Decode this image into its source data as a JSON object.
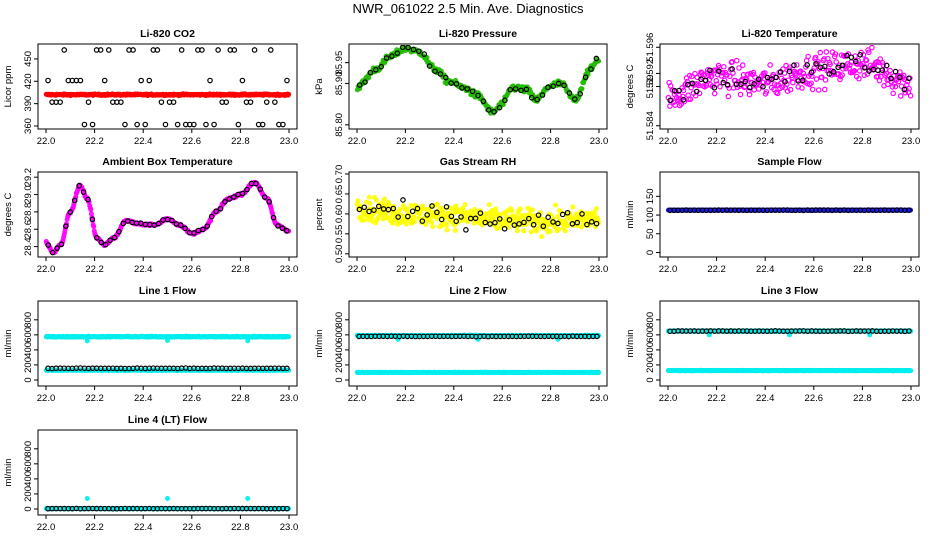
{
  "title": "NWR_061022  2.5 Min. Ave. Diagnostics",
  "colors": {
    "black": "#000000",
    "red": "#ff0000",
    "green": "#22bb00",
    "magenta": "#ff00ff",
    "yellow": "#ffff00",
    "blue": "#1a1aff",
    "cyan": "#00eeee"
  },
  "chart_data": [
    {
      "id": "co2",
      "type": "scatter",
      "title": "Li-820 CO2",
      "ylabel": "Licor ppm",
      "xlim": [
        22.0,
        23.0
      ],
      "xticks": [
        "22.0",
        "22.2",
        "22.4",
        "22.6",
        "22.8",
        "23.0"
      ],
      "ylim": [
        356,
        470
      ],
      "yticks": [
        "360",
        "390",
        "420",
        "450"
      ],
      "series": [
        {
          "color": "red",
          "pattern": "flat",
          "count": 400,
          "base": 402,
          "noise": 1,
          "marker": "filled"
        },
        {
          "color": "black",
          "pattern": "levels",
          "levels": [
            362,
            392,
            421,
            462
          ],
          "count": 60,
          "marker": "open"
        }
      ]
    },
    {
      "id": "pressure",
      "type": "scatter",
      "title": "Li-820 Pressure",
      "ylabel": "kPa",
      "xlim": [
        22.0,
        23.0
      ],
      "xticks": [
        "22.0",
        "22.2",
        "22.4",
        "22.6",
        "22.8",
        "23.0"
      ],
      "ylim": [
        85.79,
        85.995
      ],
      "yticks": [
        "85.80",
        "85.90",
        "85.95"
      ],
      "series": [
        {
          "color": "green",
          "pattern": "curve",
          "count": 320,
          "noise": 0.008,
          "knots": [
            [
              22.0,
              85.89
            ],
            [
              22.08,
              85.935
            ],
            [
              22.14,
              85.965
            ],
            [
              22.2,
              85.985
            ],
            [
              22.26,
              85.975
            ],
            [
              22.32,
              85.935
            ],
            [
              22.38,
              85.905
            ],
            [
              22.44,
              85.89
            ],
            [
              22.5,
              85.87
            ],
            [
              22.56,
              85.83
            ],
            [
              22.6,
              85.85
            ],
            [
              22.64,
              85.89
            ],
            [
              22.7,
              85.885
            ],
            [
              22.74,
              85.86
            ],
            [
              22.8,
              85.895
            ],
            [
              22.84,
              85.9
            ],
            [
              22.9,
              85.86
            ],
            [
              22.96,
              85.93
            ],
            [
              23.0,
              85.96
            ]
          ],
          "marker": "filled"
        },
        {
          "color": "black",
          "pattern": "curve",
          "count": 45,
          "noise": 0.006,
          "knots": [
            [
              22.0,
              85.89
            ],
            [
              22.08,
              85.935
            ],
            [
              22.14,
              85.965
            ],
            [
              22.2,
              85.985
            ],
            [
              22.26,
              85.975
            ],
            [
              22.32,
              85.935
            ],
            [
              22.38,
              85.905
            ],
            [
              22.44,
              85.89
            ],
            [
              22.5,
              85.87
            ],
            [
              22.56,
              85.83
            ],
            [
              22.6,
              85.85
            ],
            [
              22.64,
              85.89
            ],
            [
              22.7,
              85.885
            ],
            [
              22.74,
              85.86
            ],
            [
              22.8,
              85.895
            ],
            [
              22.84,
              85.9
            ],
            [
              22.9,
              85.86
            ],
            [
              22.96,
              85.93
            ],
            [
              23.0,
              85.96
            ]
          ],
          "marker": "open"
        }
      ]
    },
    {
      "id": "licor-temp",
      "type": "scatter",
      "title": "Li-820 Temperature",
      "ylabel": "degrees C",
      "xlim": [
        22.0,
        23.0
      ],
      "xticks": [
        "22.0",
        "22.2",
        "22.4",
        "22.6",
        "22.8",
        "23.0"
      ],
      "ylim": [
        51.5835,
        51.5965
      ],
      "yticks": [
        "51.584",
        "51.59",
        "51.592",
        "51.596"
      ],
      "series": [
        {
          "color": "magenta",
          "pattern": "curve",
          "count": 320,
          "noise": 0.0025,
          "knots": [
            [
              22.0,
              51.5885
            ],
            [
              22.2,
              51.5915
            ],
            [
              22.4,
              51.5905
            ],
            [
              22.6,
              51.5925
            ],
            [
              22.8,
              51.5935
            ],
            [
              23.0,
              51.5905
            ]
          ],
          "marker": "open"
        },
        {
          "color": "black",
          "pattern": "curve",
          "count": 55,
          "noise": 0.002,
          "knots": [
            [
              22.0,
              51.5885
            ],
            [
              22.2,
              51.5915
            ],
            [
              22.4,
              51.5905
            ],
            [
              22.6,
              51.5925
            ],
            [
              22.8,
              51.5935
            ],
            [
              23.0,
              51.5905
            ]
          ],
          "marker": "open"
        }
      ]
    },
    {
      "id": "ambient-temp",
      "type": "scatter",
      "title": "Ambient Box Temperature",
      "ylabel": "degrees C",
      "xlim": [
        22.0,
        23.0
      ],
      "xticks": [
        "22.0",
        "22.2",
        "22.4",
        "22.6",
        "22.8",
        "23.0"
      ],
      "ylim": [
        28.28,
        29.26
      ],
      "yticks": [
        "28.4",
        "28.6",
        "28.8",
        "29.0",
        "29.2"
      ],
      "series": [
        {
          "color": "magenta",
          "pattern": "curve",
          "count": 420,
          "noise": 0.012,
          "knots": [
            [
              22.0,
              28.45
            ],
            [
              22.03,
              28.33
            ],
            [
              22.06,
              28.42
            ],
            [
              22.1,
              28.8
            ],
            [
              22.14,
              29.1
            ],
            [
              22.17,
              28.95
            ],
            [
              22.21,
              28.5
            ],
            [
              22.24,
              28.42
            ],
            [
              22.28,
              28.5
            ],
            [
              22.33,
              28.7
            ],
            [
              22.38,
              28.66
            ],
            [
              22.45,
              28.65
            ],
            [
              22.5,
              28.72
            ],
            [
              22.55,
              28.65
            ],
            [
              22.6,
              28.55
            ],
            [
              22.65,
              28.6
            ],
            [
              22.7,
              28.8
            ],
            [
              22.75,
              28.95
            ],
            [
              22.8,
              29.0
            ],
            [
              22.86,
              29.14
            ],
            [
              22.91,
              28.95
            ],
            [
              22.95,
              28.65
            ],
            [
              23.0,
              28.58
            ]
          ],
          "marker": "filled"
        },
        {
          "color": "black",
          "pattern": "curve",
          "count": 55,
          "noise": 0.01,
          "knots": [
            [
              22.0,
              28.45
            ],
            [
              22.03,
              28.33
            ],
            [
              22.06,
              28.42
            ],
            [
              22.1,
              28.8
            ],
            [
              22.14,
              29.1
            ],
            [
              22.17,
              28.95
            ],
            [
              22.21,
              28.5
            ],
            [
              22.24,
              28.42
            ],
            [
              22.28,
              28.5
            ],
            [
              22.33,
              28.7
            ],
            [
              22.38,
              28.66
            ],
            [
              22.45,
              28.65
            ],
            [
              22.5,
              28.72
            ],
            [
              22.55,
              28.65
            ],
            [
              22.6,
              28.55
            ],
            [
              22.65,
              28.6
            ],
            [
              22.7,
              28.8
            ],
            [
              22.75,
              28.95
            ],
            [
              22.8,
              29.0
            ],
            [
              22.86,
              29.14
            ],
            [
              22.91,
              28.95
            ],
            [
              22.95,
              28.65
            ],
            [
              23.0,
              28.58
            ]
          ],
          "marker": "open"
        }
      ]
    },
    {
      "id": "rh",
      "type": "scatter",
      "title": "Gas Stream RH",
      "ylabel": "percent",
      "xlim": [
        22.0,
        23.0
      ],
      "xticks": [
        "22.0",
        "22.2",
        "22.4",
        "22.6",
        "22.8",
        "23.0"
      ],
      "ylim": [
        0.492,
        0.705
      ],
      "yticks": [
        "0.50",
        "0.55",
        "0.60",
        "0.65",
        "0.70"
      ],
      "series": [
        {
          "color": "yellow",
          "pattern": "curve",
          "count": 420,
          "noise": 0.03,
          "knots": [
            [
              22.0,
              0.615
            ],
            [
              22.2,
              0.6
            ],
            [
              22.4,
              0.595
            ],
            [
              22.6,
              0.585
            ],
            [
              22.8,
              0.58
            ],
            [
              23.0,
              0.59
            ]
          ],
          "marker": "filled"
        },
        {
          "color": "black",
          "pattern": "curve",
          "count": 50,
          "noise": 0.025,
          "knots": [
            [
              22.0,
              0.615
            ],
            [
              22.2,
              0.6
            ],
            [
              22.4,
              0.595
            ],
            [
              22.6,
              0.585
            ],
            [
              22.8,
              0.58
            ],
            [
              23.0,
              0.59
            ]
          ],
          "marker": "open"
        }
      ]
    },
    {
      "id": "sample-flow",
      "type": "scatter",
      "title": "Sample Flow",
      "ylabel": "ml/min",
      "xlim": [
        22.0,
        23.0
      ],
      "xticks": [
        "22.0",
        "22.2",
        "22.4",
        "22.6",
        "22.8",
        "23.0"
      ],
      "ylim": [
        -12,
        215
      ],
      "yticks": [
        "0",
        "50",
        "100",
        "150"
      ],
      "series": [
        {
          "color": "blue",
          "pattern": "flat",
          "count": 300,
          "base": 113,
          "noise": 0.5,
          "marker": "filled"
        },
        {
          "color": "black",
          "pattern": "flat",
          "count": 60,
          "base": 113,
          "noise": 0.5,
          "marker": "open"
        }
      ]
    },
    {
      "id": "line1",
      "type": "scatter",
      "title": "Line 1 Flow",
      "ylabel": "ml/min",
      "xlim": [
        22.0,
        23.0
      ],
      "xticks": [
        "22.0",
        "22.2",
        "22.4",
        "22.6",
        "22.8",
        "23.0"
      ],
      "ylim": [
        -80,
        1050
      ],
      "yticks": [
        "0",
        "200",
        "400",
        "600",
        "800"
      ],
      "series": [
        {
          "color": "cyan",
          "pattern": "flat",
          "count": 400,
          "base": 575,
          "noise": 6,
          "marker": "filled",
          "outliers": [
            [
              22.17,
              520
            ],
            [
              22.5,
              525
            ],
            [
              22.83,
              520
            ]
          ]
        },
        {
          "color": "cyan",
          "pattern": "flat",
          "count": 380,
          "base": 130,
          "noise": 3,
          "marker": "filled"
        },
        {
          "color": "black",
          "pattern": "flat",
          "count": 60,
          "base": 155,
          "noise": 3,
          "marker": "open"
        }
      ]
    },
    {
      "id": "line2",
      "type": "scatter",
      "title": "Line 2 Flow",
      "ylabel": "ml/min",
      "xlim": [
        22.0,
        23.0
      ],
      "xticks": [
        "22.0",
        "22.2",
        "22.4",
        "22.6",
        "22.8",
        "23.0"
      ],
      "ylim": [
        -80,
        1050
      ],
      "yticks": [
        "0",
        "200",
        "400",
        "600",
        "800"
      ],
      "series": [
        {
          "color": "cyan",
          "pattern": "flat",
          "count": 400,
          "base": 590,
          "noise": 5,
          "marker": "filled",
          "outliers": [
            [
              22.17,
              540
            ],
            [
              22.5,
              540
            ],
            [
              22.83,
              540
            ]
          ]
        },
        {
          "color": "cyan",
          "pattern": "flat",
          "count": 380,
          "base": 100,
          "noise": 3,
          "marker": "filled"
        },
        {
          "color": "black",
          "pattern": "flat",
          "count": 60,
          "base": 580,
          "noise": 3,
          "marker": "open"
        }
      ]
    },
    {
      "id": "line3",
      "type": "scatter",
      "title": "Line 3 Flow",
      "ylabel": "ml/min",
      "xlim": [
        22.0,
        23.0
      ],
      "xticks": [
        "22.0",
        "22.2",
        "22.4",
        "22.6",
        "22.8",
        "23.0"
      ],
      "ylim": [
        -80,
        1050
      ],
      "yticks": [
        "0",
        "200",
        "400",
        "600",
        "800"
      ],
      "series": [
        {
          "color": "cyan",
          "pattern": "flat",
          "count": 400,
          "base": 650,
          "noise": 4,
          "marker": "filled",
          "outliers": [
            [
              22.17,
              600
            ],
            [
              22.5,
              600
            ],
            [
              22.83,
              600
            ]
          ]
        },
        {
          "color": "cyan",
          "pattern": "flat",
          "count": 380,
          "base": 125,
          "noise": 3,
          "marker": "filled"
        },
        {
          "color": "black",
          "pattern": "flat",
          "count": 60,
          "base": 650,
          "noise": 3,
          "marker": "open"
        }
      ]
    },
    {
      "id": "line4",
      "type": "scatter",
      "title": "Line 4 (LT) Flow",
      "ylabel": "ml/min",
      "xlim": [
        22.0,
        23.0
      ],
      "xticks": [
        "22.0",
        "22.2",
        "22.4",
        "22.6",
        "22.8",
        "23.0"
      ],
      "ylim": [
        -80,
        1050
      ],
      "yticks": [
        "0",
        "200",
        "400",
        "600",
        "800"
      ],
      "series": [
        {
          "color": "cyan",
          "pattern": "flat",
          "count": 400,
          "base": 5,
          "noise": 2,
          "marker": "filled",
          "outliers": [
            [
              22.17,
              140
            ],
            [
              22.5,
              140
            ],
            [
              22.83,
              140
            ]
          ]
        },
        {
          "color": "black",
          "pattern": "flat",
          "count": 60,
          "base": 5,
          "noise": 2,
          "marker": "open"
        }
      ]
    }
  ]
}
